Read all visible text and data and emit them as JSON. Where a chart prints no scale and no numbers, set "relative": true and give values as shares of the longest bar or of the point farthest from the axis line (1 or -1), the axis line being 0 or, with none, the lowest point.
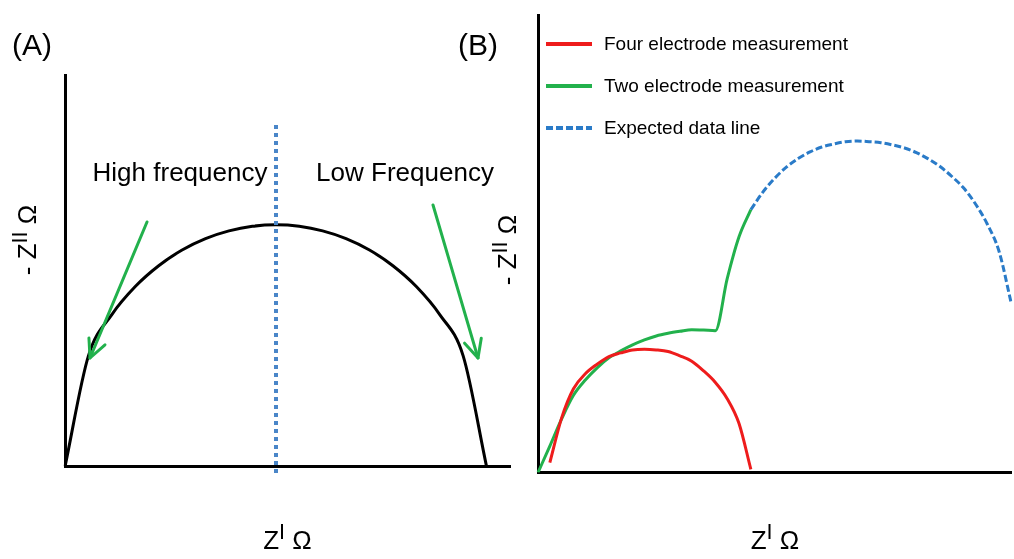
{
  "chart_data": [
    {
      "type": "line",
      "title": "(A)",
      "xlabel": "Z$^{I}$ Ω",
      "ylabel": "- Z$^{II}$ Ω",
      "relative": true,
      "grid": false,
      "legend": false,
      "categories": [
        null,
        null,
        null,
        null,
        null,
        null,
        null,
        null,
        null,
        null,
        null,
        null,
        null,
        null,
        null,
        null,
        null,
        null,
        null,
        null
      ],
      "series": [
        {
          "color": "#000000",
          "values": [
            0,
            0.458,
            0.629,
            0.745,
            0.831,
            0.896,
            0.943,
            0.975,
            0.994,
            1,
            0.994,
            0.975,
            0.943,
            0.896,
            0.831,
            0.745,
            0.629,
            0.458,
            0,
            null
          ]
        }
      ],
      "annotations": [
        "High frequency",
        "Low Frequency"
      ]
    },
    {
      "type": "line",
      "title": "(B)",
      "xlabel": "Z$^{I}$ Ω",
      "ylabel": "- Z$^{II}$ Ω",
      "relative": true,
      "grid": false,
      "legend": "top left",
      "categories": [
        null,
        null,
        null,
        null,
        null,
        null,
        null,
        null,
        null,
        null,
        null,
        null,
        null,
        null,
        null,
        null,
        null,
        null,
        null,
        null,
        null,
        null,
        null,
        null,
        null,
        null,
        null,
        null,
        null,
        null,
        null,
        null,
        null,
        null,
        null,
        null,
        null,
        null,
        null,
        null,
        null
      ],
      "series": [
        {
          "name": "Four electrode measurement",
          "color": "#ee1c1c",
          "values": [
            null,
            0.03,
            0.165,
            0.253,
            0.298,
            0.327,
            0.35,
            0.361,
            0.37,
            0.372,
            0.37,
            0.365,
            0.352,
            0.336,
            0.307,
            0.272,
            0.223,
            0.148,
            0.01,
            null,
            null,
            null,
            null,
            null,
            null,
            null,
            null,
            null,
            null,
            null,
            null,
            null,
            null,
            null,
            null,
            null,
            null,
            null,
            null,
            null,
            null
          ]
        },
        {
          "name": "Two electrode measurement",
          "color": "#22b14c",
          "values": [
            0,
            0.08,
            0.162,
            0.233,
            0.279,
            0.316,
            0.346,
            0.367,
            0.385,
            0.4,
            0.412,
            0.42,
            0.426,
            0.431,
            0.43,
            0.428,
            0.585,
            0.711,
            0.793,
            null,
            null,
            null,
            null,
            null,
            null,
            null,
            null,
            null,
            null,
            null,
            null,
            null,
            null,
            null,
            null,
            null,
            null,
            null,
            null,
            null,
            null
          ]
        },
        {
          "name": "Expected data line",
          "color": "#2a7bc8",
          "line_style": "dashed",
          "values": [
            null,
            null,
            null,
            null,
            null,
            null,
            null,
            null,
            null,
            null,
            null,
            null,
            null,
            null,
            null,
            null,
            null,
            null,
            0.793,
            0.845,
            0.887,
            0.921,
            0.947,
            0.967,
            0.982,
            0.991,
            0.998,
            1,
            0.998,
            0.995,
            0.988,
            0.979,
            0.965,
            0.946,
            0.923,
            0.893,
            0.858,
            0.81,
            0.749,
            0.666,
            0.514
          ]
        }
      ]
    }
  ]
}
